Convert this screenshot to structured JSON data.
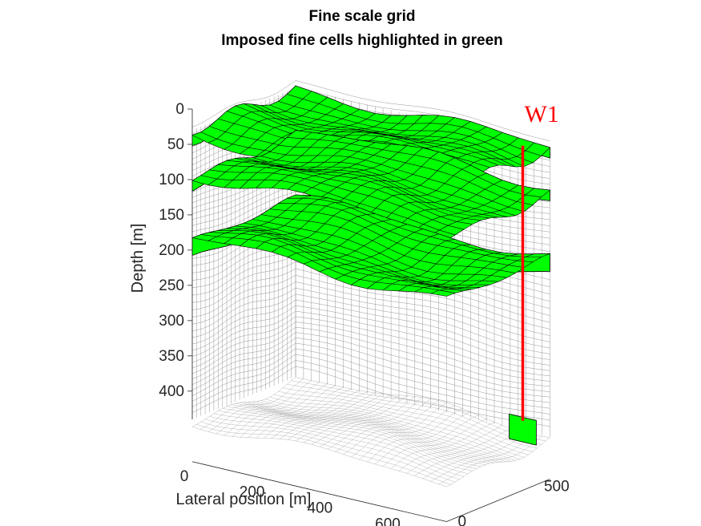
{
  "chart_data": {
    "type": "3d-grid",
    "title_line1": "Fine scale grid",
    "title_line2": "Imposed fine cells highlighted in green",
    "xlabel": "Lateral position [m]",
    "ylabel": "",
    "zlabel": "Depth [m]",
    "x_ticks": [
      0,
      200,
      400,
      600
    ],
    "y_ticks": [
      0,
      500
    ],
    "z_ticks": [
      0,
      50,
      100,
      150,
      200,
      250,
      300,
      350,
      400
    ],
    "x_range": [
      0,
      750
    ],
    "y_range": [
      0,
      600
    ],
    "z_range": [
      0,
      440
    ],
    "z_reversed": true,
    "fine_layers": [
      {
        "name": "",
        "top_depth": 30,
        "bottom_depth": 45
      },
      {
        "name": "",
        "top_depth": 90,
        "bottom_depth": 105
      },
      {
        "name": "",
        "top_depth": 190,
        "bottom_depth": 215
      }
    ],
    "well": {
      "name": "W1",
      "top_depth": 0,
      "bottom_depth": 420
    },
    "colors": {
      "fine_cells": "#00ff00",
      "well": "#ff0000",
      "coarse_grid": "#8c8c8c",
      "edges": "#000000",
      "axis": "#262626"
    }
  }
}
